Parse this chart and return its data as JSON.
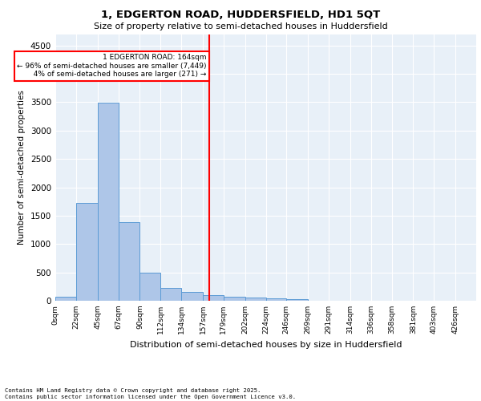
{
  "title_line1": "1, EDGERTON ROAD, HUDDERSFIELD, HD1 5QT",
  "title_line2": "Size of property relative to semi-detached houses in Huddersfield",
  "xlabel": "Distribution of semi-detached houses by size in Huddersfield",
  "ylabel": "Number of semi-detached properties",
  "property_label": "1 EDGERTON ROAD: 164sqm",
  "pct_smaller": 96,
  "count_smaller": 7449,
  "pct_larger": 4,
  "count_larger": 271,
  "bin_edges": [
    0,
    22,
    45,
    67,
    90,
    112,
    134,
    157,
    179,
    202,
    224,
    246,
    269,
    291,
    314,
    336,
    358,
    381,
    403,
    426,
    448
  ],
  "bar_heights": [
    75,
    1720,
    3490,
    1380,
    500,
    220,
    155,
    100,
    65,
    55,
    45,
    35,
    5,
    0,
    0,
    0,
    0,
    0,
    0,
    0
  ],
  "bar_color": "#aec6e8",
  "bar_edge_color": "#5b9bd5",
  "vline_color": "red",
  "vline_x": 164,
  "ylim": [
    0,
    4700
  ],
  "yticks": [
    0,
    500,
    1000,
    1500,
    2000,
    2500,
    3000,
    3500,
    4000,
    4500
  ],
  "bg_color": "#e8f0f8",
  "footer_line1": "Contains HM Land Registry data © Crown copyright and database right 2025.",
  "footer_line2": "Contains public sector information licensed under the Open Government Licence v3.0."
}
